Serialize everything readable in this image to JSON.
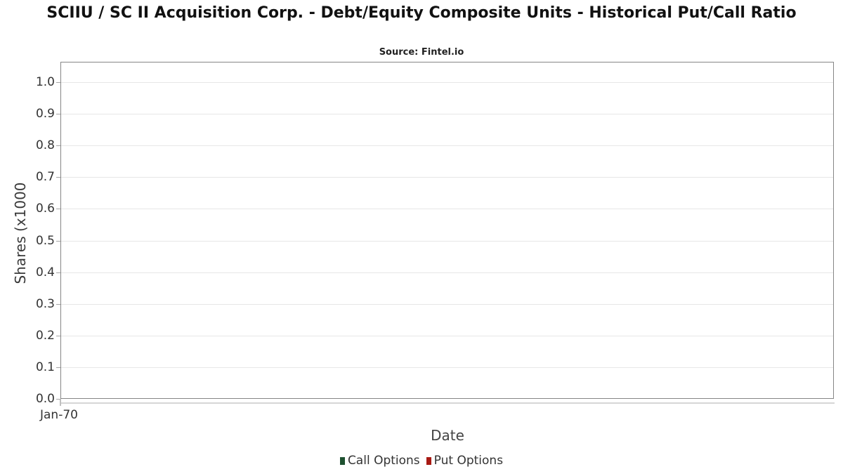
{
  "chart_data": {
    "type": "line",
    "title": "SCIIU / SC II Acquisition Corp. - Debt/Equity Composite Units - Historical Put/Call Ratio",
    "subtitle": "Source: Fintel.io",
    "xlabel": "Date",
    "ylabel": "Shares (x1000",
    "ylim": [
      0.0,
      1.06
    ],
    "yticks": [
      0.0,
      0.1,
      0.2,
      0.3,
      0.4,
      0.5,
      0.6,
      0.7,
      0.8,
      0.9,
      1.0
    ],
    "ytick_labels": [
      "0.0",
      "0.1",
      "0.2",
      "0.3",
      "0.4",
      "0.5",
      "0.6",
      "0.7",
      "0.8",
      "0.9",
      "1.0"
    ],
    "xtick_labels": [
      "Jan-70"
    ],
    "grid": true,
    "legend_position": "bottom",
    "plot_border_color": "#868686",
    "gridline_color": "#e7e7e7",
    "series": [
      {
        "name": "Call Options",
        "color": "#1e5130",
        "values": []
      },
      {
        "name": "Put Options",
        "color": "#a81a14",
        "values": []
      }
    ]
  }
}
